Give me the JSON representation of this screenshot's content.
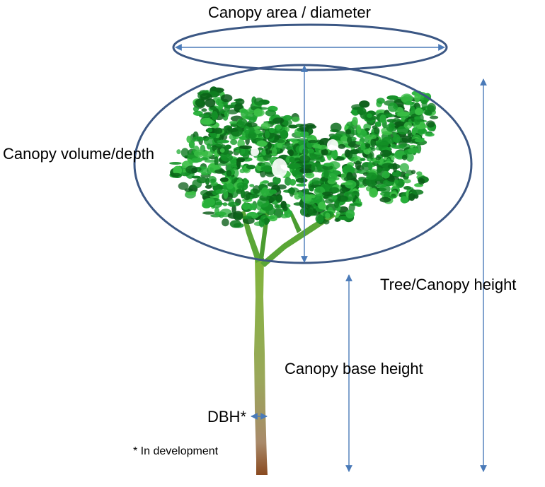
{
  "labels": {
    "canopy_area": "Canopy area / diameter",
    "canopy_volume": "Canopy volume/depth",
    "tree_height": "Tree/Canopy height",
    "base_height": "Canopy base height",
    "dbh": "DBH*",
    "footnote": "* In development"
  },
  "colors": {
    "ellipse_stroke": "#3b5784",
    "arrow": "#4a7ab8",
    "foliage_dark": "#0c7a1e",
    "foliage": "#1a9a2a",
    "foliage_light": "#3cc24a",
    "trunk_top": "#6fa836",
    "trunk_bottom": "#9a6a4a"
  }
}
